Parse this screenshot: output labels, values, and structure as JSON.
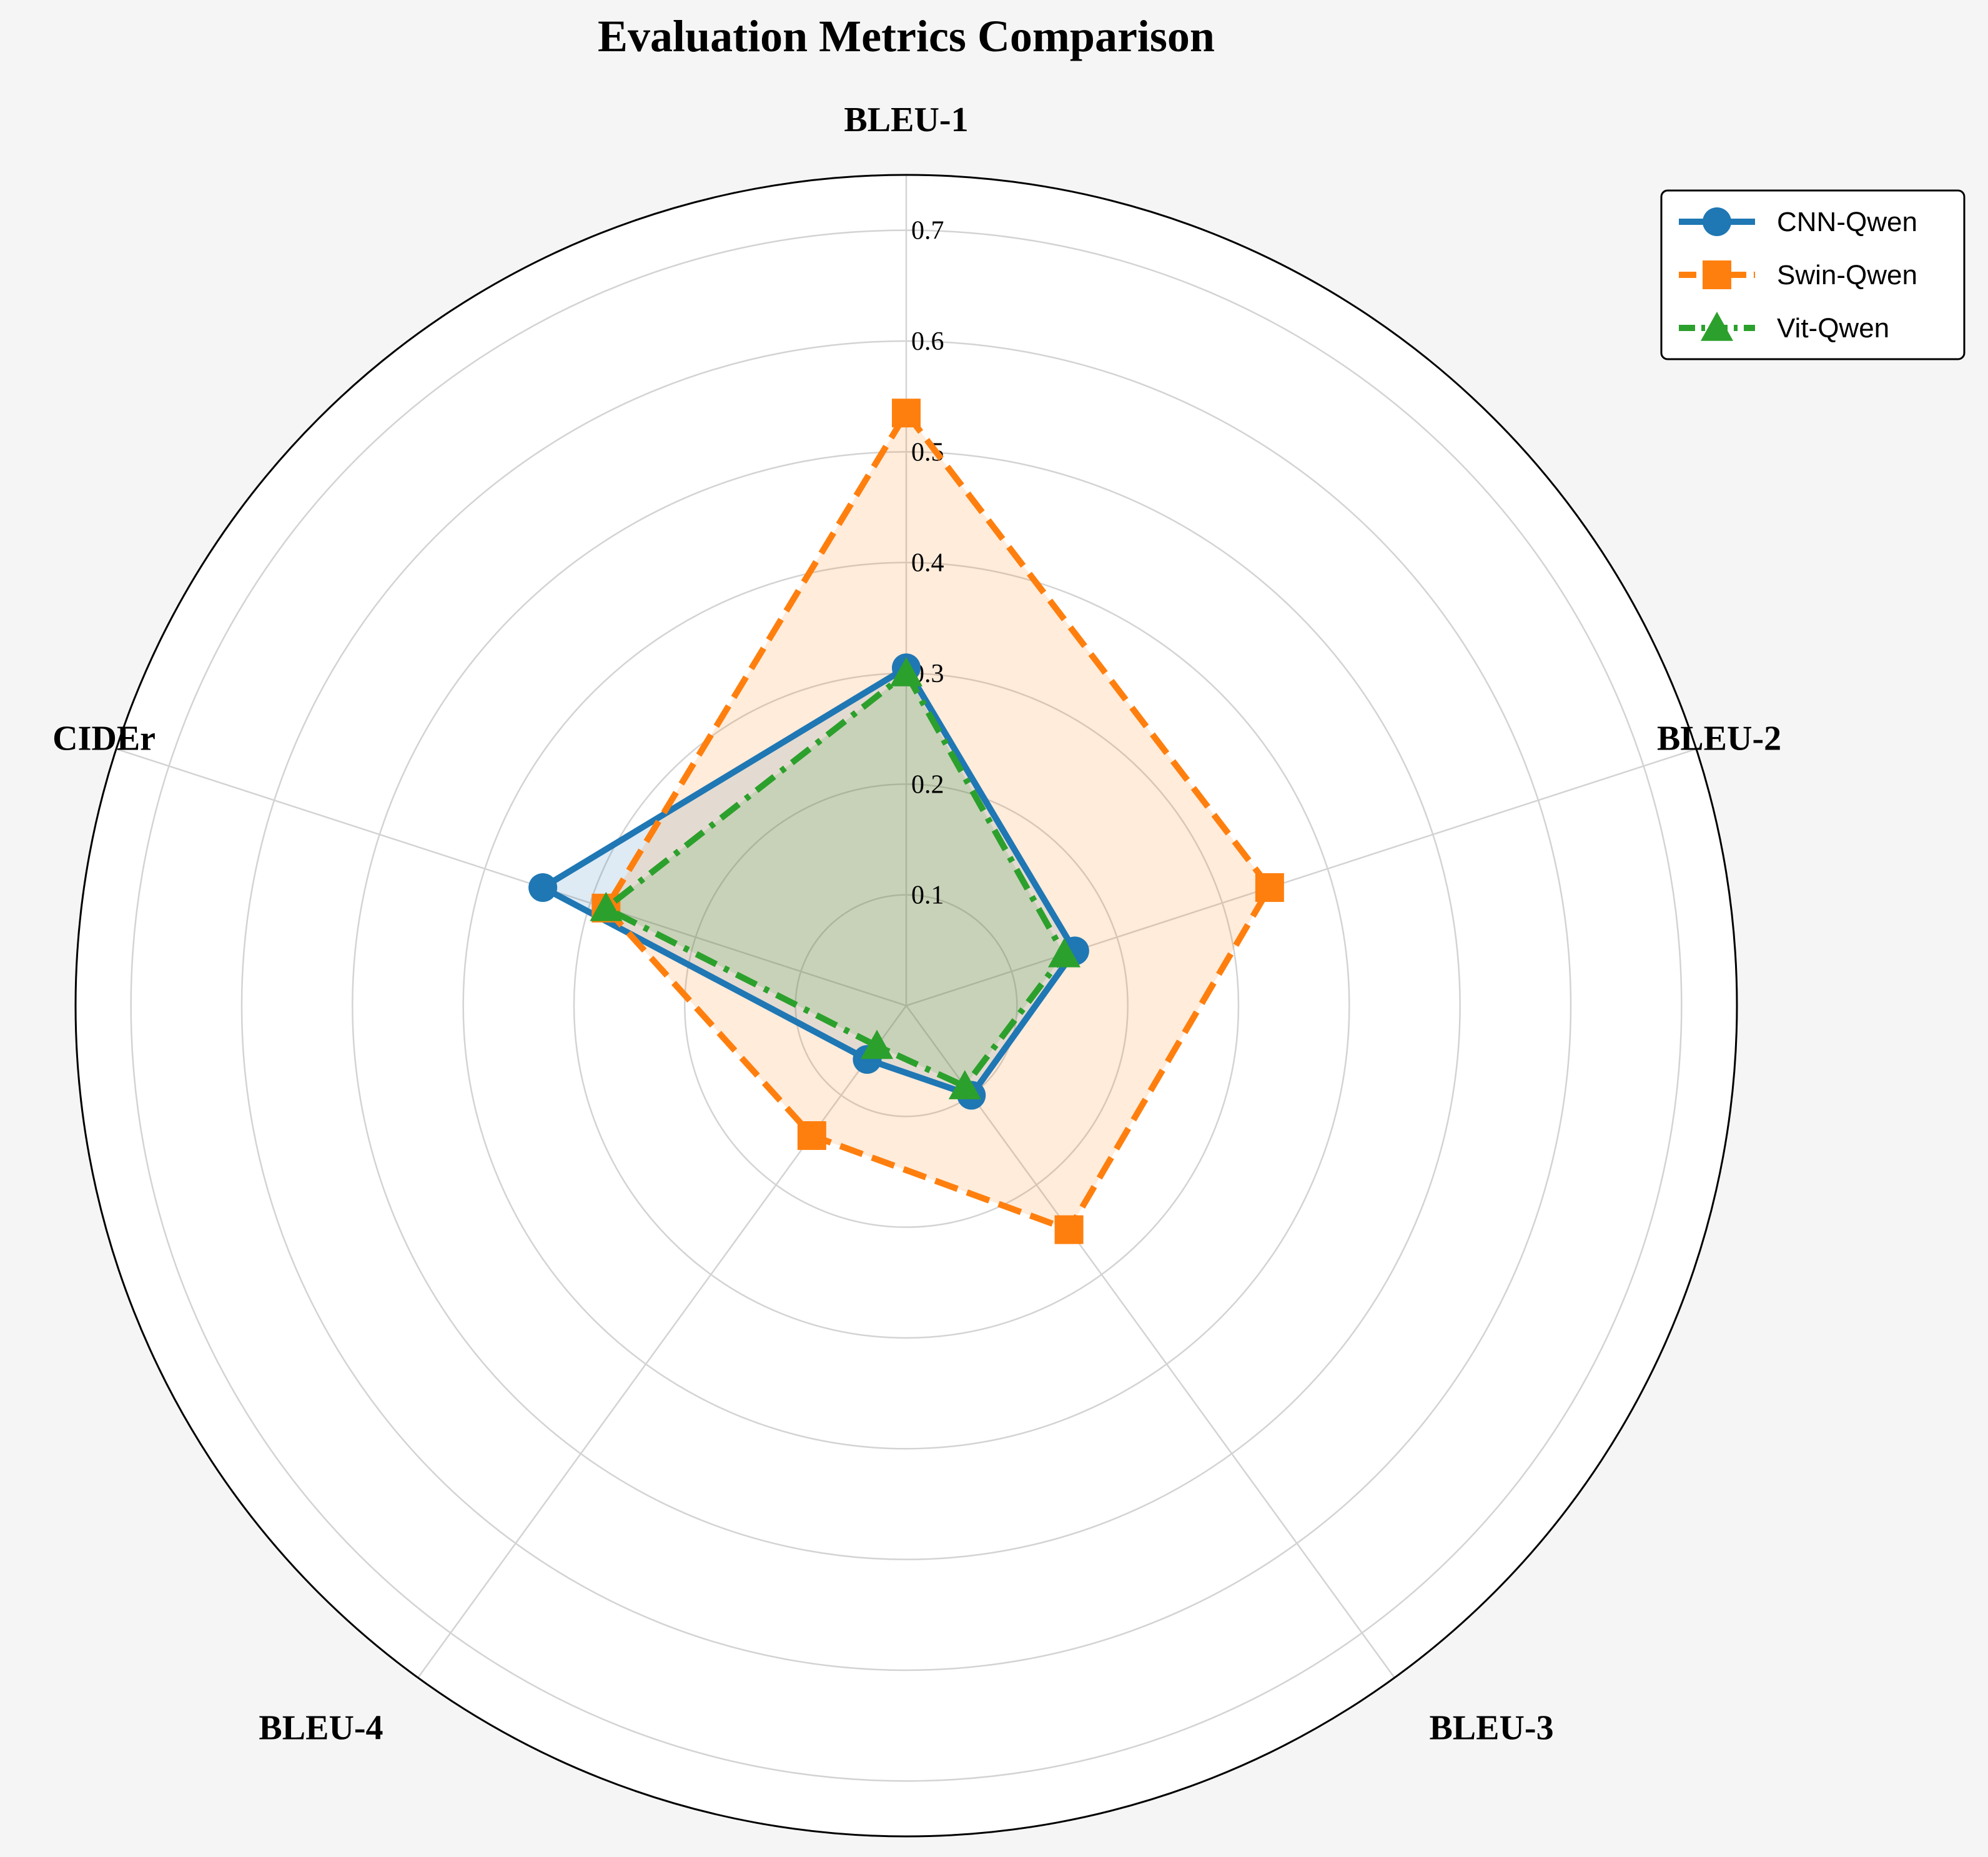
{
  "chart_data": {
    "type": "radar",
    "title": "Evaluation Metrics Comparison",
    "categories": [
      "BLEU-1",
      "BLEU-2",
      "BLEU-3",
      "BLEU-4",
      "CIDEr"
    ],
    "rlim": [
      0,
      0.75
    ],
    "rticks": [
      0.1,
      0.2,
      0.3,
      0.4,
      0.5,
      0.6,
      0.7
    ],
    "rtick_labels": [
      "0.1",
      "0.2",
      "0.3",
      "0.4",
      "0.5",
      "0.6",
      "0.7"
    ],
    "grid": true,
    "legend_position": "top-right",
    "series": [
      {
        "name": "CNN-Qwen",
        "values": [
          0.305,
          0.16,
          0.1,
          0.06,
          0.345
        ],
        "color": "#1f77b4",
        "marker": "circle",
        "line_style": "solid"
      },
      {
        "name": "Swin-Qwen",
        "values": [
          0.535,
          0.345,
          0.25,
          0.145,
          0.285
        ],
        "color": "#ff7f0e",
        "marker": "square",
        "line_style": "dashed"
      },
      {
        "name": "Vit-Qwen",
        "values": [
          0.3,
          0.15,
          0.09,
          0.045,
          0.285
        ],
        "color": "#2ca02c",
        "marker": "triangle",
        "line_style": "dashdot"
      }
    ]
  }
}
